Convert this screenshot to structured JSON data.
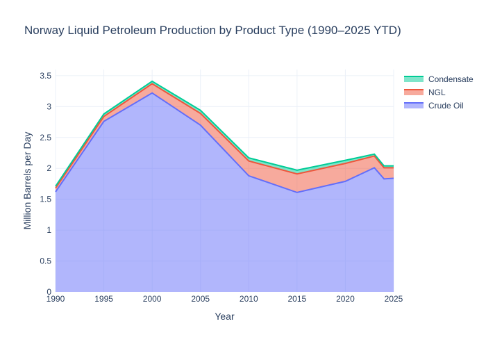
{
  "chart_data": {
    "type": "area",
    "title": "Norway Liquid Petroleum Production by Product Type (1990–2025 YTD)",
    "xlabel": "Year",
    "ylabel": "Million Barrels per Day",
    "xlim": [
      1990,
      2025
    ],
    "ylim": [
      0,
      3.6
    ],
    "x_ticks": [
      "1990",
      "1995",
      "2000",
      "2005",
      "2010",
      "2015",
      "2020",
      "2025"
    ],
    "y_ticks": [
      "0",
      "0.5",
      "1",
      "1.5",
      "2",
      "2.5",
      "3",
      "3.5"
    ],
    "grid": true,
    "stacked": true,
    "legend_position": "top-right",
    "x": [
      1990,
      1995,
      2000,
      2005,
      2010,
      2015,
      2020,
      2023,
      2024,
      2025
    ],
    "series": [
      {
        "name": "Crude Oil",
        "color": "#636efa",
        "values": [
          1.62,
          2.76,
          3.22,
          2.7,
          1.88,
          1.61,
          1.79,
          2.01,
          1.83,
          1.84
        ]
      },
      {
        "name": "NGL",
        "color": "#ef553b",
        "values": [
          0.06,
          0.08,
          0.15,
          0.19,
          0.24,
          0.3,
          0.29,
          0.19,
          0.18,
          0.17
        ]
      },
      {
        "name": "Condensate",
        "color": "#00cc96",
        "values": [
          0.03,
          0.04,
          0.04,
          0.05,
          0.05,
          0.06,
          0.05,
          0.03,
          0.03,
          0.03
        ]
      }
    ],
    "legend_order": [
      "Condensate",
      "NGL",
      "Crude Oil"
    ]
  }
}
